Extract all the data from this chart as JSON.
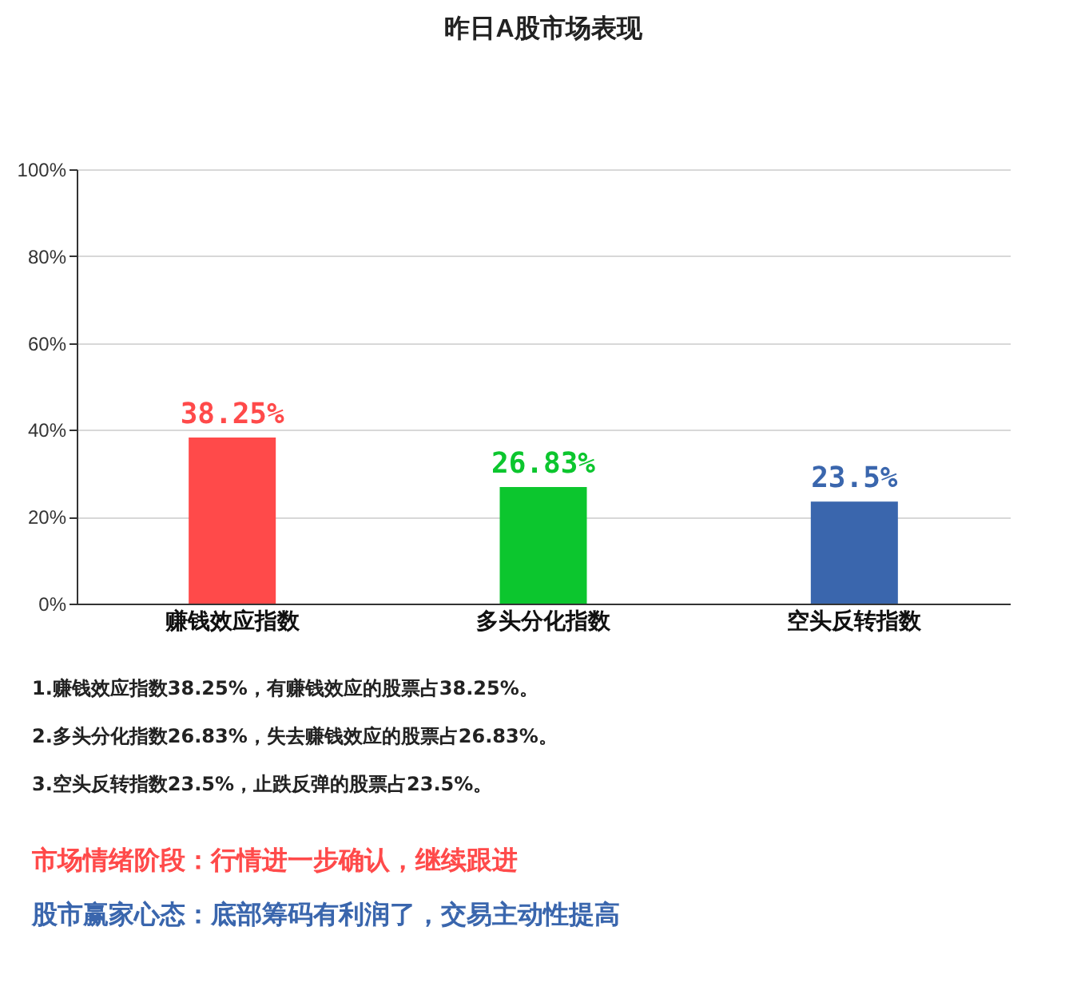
{
  "chart_data": {
    "type": "bar",
    "title": "昨日A股市场表现",
    "categories": [
      "赚钱效应指数",
      "多头分化指数",
      "空头反转指数"
    ],
    "values": [
      38.25,
      26.83,
      23.5
    ],
    "colors": [
      "#ff4a4a",
      "#0cc62e",
      "#3a66ad"
    ],
    "value_labels": [
      "38.25%",
      "26.83%",
      "23.5%"
    ],
    "ylim": [
      0,
      100
    ],
    "yticks": [
      {
        "value": 0,
        "label": "0%"
      },
      {
        "value": 20,
        "label": "20%"
      },
      {
        "value": 40,
        "label": "40%"
      },
      {
        "value": 60,
        "label": "60%"
      },
      {
        "value": 80,
        "label": "80%"
      },
      {
        "value": 100,
        "label": "100%"
      }
    ],
    "grid": "y",
    "annotations": [
      "1.赚钱效应指数38.25%，有赚钱效应的股票占38.25%。",
      "2.多头分化指数26.83%，失去赚钱效应的股票占26.83%。",
      "3.空头反转指数23.5%，止跌反弹的股票占23.5%。",
      "市场情绪阶段：行情进一步确认，继续跟进",
      "股市赢家心态：底部筹码有利润了，交易主动性提高"
    ]
  }
}
